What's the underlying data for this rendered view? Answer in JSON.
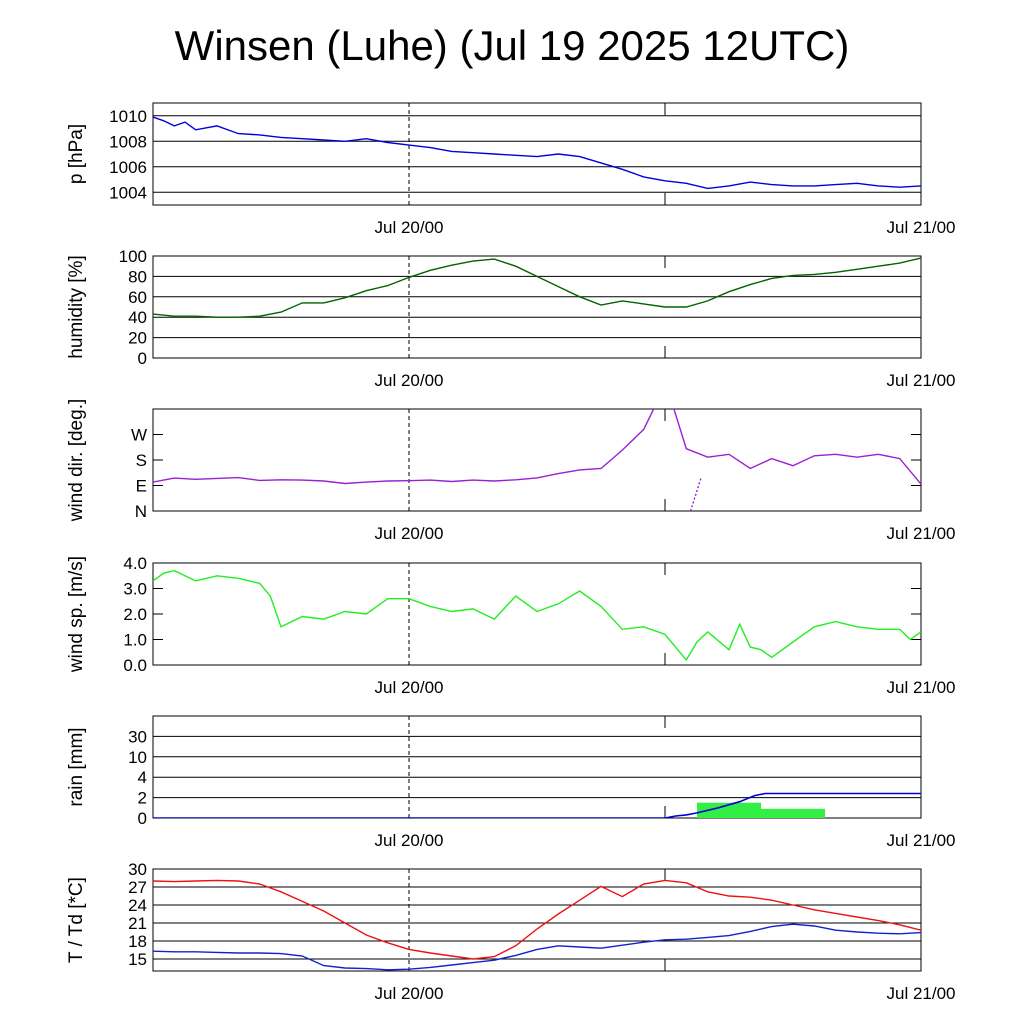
{
  "title": "Winsen (Luhe) (Jul 19 2025 12UTC)",
  "x_ticks": [
    "Jul 20/00",
    "Jul 21/00"
  ],
  "colors": {
    "pressure": "#0000dd",
    "humidity": "#006400",
    "wind_dir": "#9a1fd6",
    "wind_speed": "#22ee22",
    "rain_bars": "#33ee44",
    "rain_sum": "#0000dd",
    "temperature": "#ee1111",
    "dewpoint": "#1122cc"
  },
  "chart_data": [
    {
      "type": "line",
      "ylabel": "p [hPa]",
      "yticks": [
        1004,
        1006,
        1008,
        1010
      ],
      "ylim": [
        1003,
        1011
      ],
      "grid": true,
      "x_hours_since_start": [
        0,
        0.5,
        1,
        1.5,
        2,
        3,
        4,
        5,
        6,
        7,
        8,
        9,
        10,
        11,
        12,
        13,
        14,
        15,
        16,
        17,
        18,
        19,
        20,
        21,
        22,
        23,
        24,
        25,
        26,
        27,
        28,
        29,
        30,
        31,
        32,
        33,
        34,
        35,
        36
      ],
      "series": [
        {
          "values": [
            1009.9,
            1009.6,
            1009.2,
            1009.5,
            1008.9,
            1009.2,
            1008.6,
            1008.5,
            1008.3,
            1008.2,
            1008.1,
            1008.0,
            1008.2,
            1007.9,
            1007.7,
            1007.5,
            1007.2,
            1007.1,
            1007.0,
            1006.9,
            1006.8,
            1007.0,
            1006.8,
            1006.3,
            1005.8,
            1005.2,
            1004.9,
            1004.7,
            1004.3,
            1004.5,
            1004.8,
            1004.6,
            1004.5,
            1004.5,
            1004.6,
            1004.7,
            1004.5,
            1004.4,
            1004.5
          ]
        }
      ]
    },
    {
      "type": "line",
      "ylabel": "humidity [%]",
      "yticks": [
        0,
        20,
        40,
        60,
        80,
        100
      ],
      "ylim": [
        0,
        100
      ],
      "grid": true,
      "x_hours_since_start": [
        0,
        1,
        2,
        3,
        4,
        5,
        6,
        7,
        8,
        9,
        10,
        11,
        12,
        13,
        14,
        15,
        16,
        17,
        18,
        19,
        20,
        21,
        22,
        23,
        24,
        25,
        26,
        27,
        28,
        29,
        30,
        31,
        32,
        33,
        34,
        35,
        36
      ],
      "series": [
        {
          "values": [
            43,
            41,
            41,
            40,
            40,
            41,
            45,
            54,
            54,
            59,
            66,
            71,
            79,
            86,
            91,
            95,
            97,
            90,
            80,
            70,
            60,
            52,
            56,
            53,
            50,
            50,
            56,
            65,
            72,
            78,
            81,
            82,
            84,
            87,
            90,
            93,
            98
          ]
        }
      ]
    },
    {
      "type": "line",
      "ylabel": "wind dir. [deg.]",
      "yticks_deg": [
        0,
        90,
        180,
        270
      ],
      "ytick_labels": [
        "N",
        "E",
        "S",
        "W"
      ],
      "ylim": [
        0,
        360
      ],
      "grid": false,
      "x_hours_since_start": [
        0,
        1,
        2,
        3,
        4,
        5,
        6,
        7,
        8,
        9,
        10,
        11,
        12,
        13,
        14,
        15,
        16,
        17,
        18,
        19,
        20,
        21,
        22,
        23,
        23.5,
        24,
        24.4,
        25,
        26,
        27,
        28,
        29,
        30,
        31,
        32,
        33,
        34,
        35,
        36
      ],
      "series": [
        {
          "values": [
            102,
            116,
            112,
            115,
            118,
            108,
            110,
            109,
            106,
            97,
            102,
            106,
            107,
            109,
            104,
            109,
            106,
            110,
            117,
            132,
            145,
            150,
            215,
            288,
            365,
            365,
            365,
            220,
            190,
            200,
            150,
            185,
            160,
            195,
            200,
            190,
            200,
            185,
            95
          ]
        }
      ],
      "wrap_segment": {
        "x_hours_since_start": [
          25.2,
          25.7
        ],
        "values": [
          0,
          120
        ]
      }
    },
    {
      "type": "line",
      "ylabel": "wind sp. [m/s]",
      "yticks": [
        0.0,
        1.0,
        2.0,
        3.0,
        4.0
      ],
      "ytick_labels": [
        "0.0",
        "1.0",
        "2.0",
        "3.0",
        "4.0"
      ],
      "ylim": [
        0,
        4
      ],
      "grid": false,
      "x_hours_since_start": [
        0,
        0.5,
        1,
        1.5,
        2,
        3,
        4,
        5,
        5.5,
        6,
        7,
        8,
        9,
        10,
        11,
        12,
        13,
        14,
        15,
        16,
        17,
        18,
        19,
        20,
        21,
        22,
        23,
        24,
        25,
        25.5,
        26,
        27,
        27.5,
        28,
        28.5,
        29,
        30,
        31,
        32,
        33,
        34,
        35,
        35.5,
        36
      ],
      "series": [
        {
          "values": [
            3.3,
            3.6,
            3.7,
            3.5,
            3.3,
            3.5,
            3.4,
            3.2,
            2.7,
            1.5,
            1.9,
            1.8,
            2.1,
            2.0,
            2.6,
            2.6,
            2.3,
            2.1,
            2.2,
            1.8,
            2.7,
            2.1,
            2.4,
            2.9,
            2.3,
            1.4,
            1.5,
            1.2,
            0.2,
            0.9,
            1.3,
            0.6,
            1.6,
            0.7,
            0.6,
            0.3,
            0.9,
            1.5,
            1.7,
            1.5,
            1.4,
            1.4,
            1.0,
            1.3
          ]
        }
      ]
    },
    {
      "type": "bar",
      "ylabel": "rain [mm]",
      "yticks": [
        0,
        2,
        4,
        10,
        30
      ],
      "ytick_labels": [
        "0",
        "2",
        "4",
        "10",
        "30"
      ],
      "scale": "piecewise",
      "grid": true,
      "bars": [
        {
          "x_start_hours": 25.5,
          "x_end_hours": 28.5,
          "value": 1.5
        },
        {
          "x_start_hours": 28.5,
          "x_end_hours": 31.5,
          "value": 0.9
        }
      ],
      "cumulative_line": {
        "x_hours_since_start": [
          0,
          24,
          24.5,
          25,
          25.5,
          26.5,
          27.5,
          28.2,
          28.7,
          36
        ],
        "values": [
          0,
          0,
          0.2,
          0.3,
          0.5,
          1.0,
          1.6,
          2.2,
          2.4,
          2.4
        ]
      }
    },
    {
      "type": "line",
      "ylabel": "T / Td [*C]",
      "yticks": [
        15,
        18,
        21,
        24,
        27,
        30
      ],
      "ylim": [
        13,
        30
      ],
      "grid": true,
      "x_hours_since_start": [
        0,
        1,
        2,
        3,
        4,
        5,
        6,
        7,
        8,
        9,
        10,
        11,
        12,
        13,
        14,
        15,
        16,
        17,
        18,
        19,
        20,
        21,
        22,
        23,
        24,
        25,
        26,
        27,
        28,
        29,
        30,
        31,
        32,
        33,
        34,
        35,
        36
      ],
      "series": [
        {
          "name": "T",
          "values": [
            28.0,
            27.9,
            28.0,
            28.1,
            28.0,
            27.5,
            26.2,
            24.6,
            23.0,
            21.0,
            19.0,
            17.7,
            16.6,
            16.0,
            15.5,
            15.0,
            15.4,
            17.2,
            20.0,
            22.5,
            24.8,
            27.1,
            25.4,
            27.5,
            28.1,
            27.7,
            26.2,
            25.5,
            25.3,
            24.8,
            24.0,
            23.2,
            22.6,
            22.0,
            21.4,
            20.7,
            19.8
          ]
        },
        {
          "name": "Td",
          "values": [
            16.3,
            16.2,
            16.2,
            16.1,
            16.0,
            16.0,
            15.9,
            15.5,
            13.9,
            13.5,
            13.4,
            13.2,
            13.3,
            13.6,
            14.0,
            14.4,
            14.8,
            15.6,
            16.6,
            17.2,
            17.0,
            16.8,
            17.3,
            17.8,
            18.2,
            18.3,
            18.6,
            18.9,
            19.6,
            20.4,
            20.8,
            20.5,
            19.8,
            19.5,
            19.3,
            19.2,
            19.4
          ]
        }
      ]
    }
  ]
}
